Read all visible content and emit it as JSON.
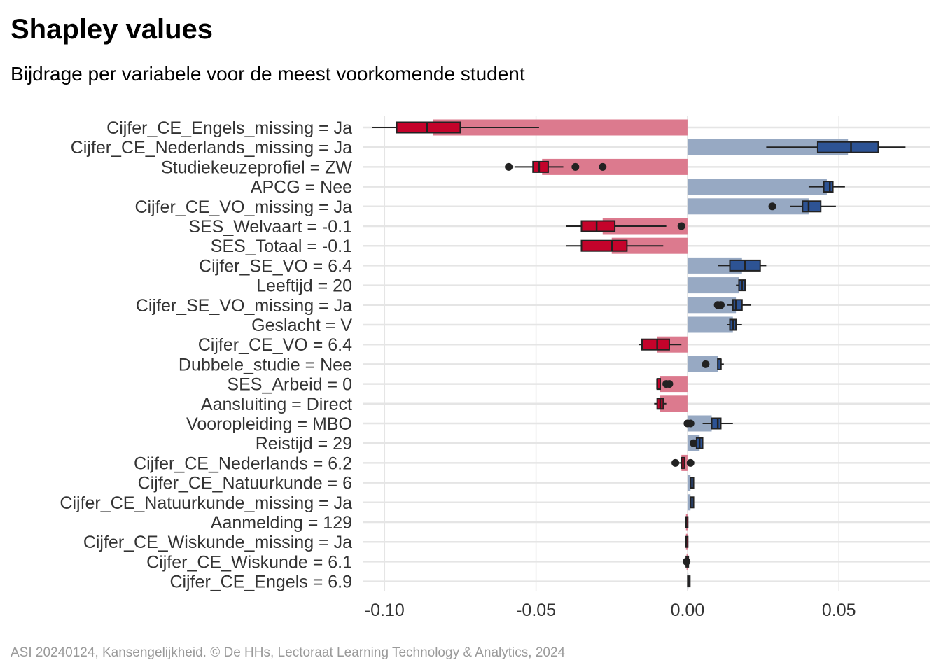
{
  "title": "Shapley values",
  "subtitle": "Bijdrage per variabele voor de meest voorkomende student",
  "caption": "ASI 20240124, Kansengelijkheid. © De HHs, Lectoraat Learning Technology & Analytics, 2024",
  "colors": {
    "negative_bar": "#dc7a8e",
    "negative_box": "#c4032b",
    "positive_bar": "#97a9c3",
    "positive_box": "#2d5394",
    "whisker": "#222222",
    "grid": "#e5e5e5"
  },
  "chart_data": {
    "type": "bar",
    "orientation": "horizontal",
    "title": "Shapley values",
    "subtitle": "Bijdrage per variabele voor de meest voorkomende student",
    "xlabel": "",
    "ylabel": "",
    "xlim": [
      -0.107,
      0.08
    ],
    "x_ticks": [
      -0.1,
      -0.05,
      0.0,
      0.05
    ],
    "x_tick_labels": [
      "-0.10",
      "-0.05",
      "0.00",
      "0.05"
    ],
    "grid": true,
    "categories": [
      "Cijfer_CE_Engels_missing = Ja",
      "Cijfer_CE_Nederlands_missing = Ja",
      "Studiekeuzeprofiel = ZW",
      "APCG = Nee",
      "Cijfer_CE_VO_missing = Ja",
      "SES_Welvaart = -0.1",
      "SES_Totaal = -0.1",
      "Cijfer_SE_VO = 6.4",
      "Leeftijd = 20",
      "Cijfer_SE_VO_missing = Ja",
      "Geslacht = V",
      "Cijfer_CE_VO = 6.4",
      "Dubbele_studie = Nee",
      "SES_Arbeid = 0",
      "Aansluiting = Direct",
      "Vooropleiding = MBO",
      "Reistijd = 29",
      "Cijfer_CE_Nederlands = 6.2",
      "Cijfer_CE_Natuurkunde = 6",
      "Cijfer_CE_Natuurkunde_missing = Ja",
      "Aanmelding = 129",
      "Cijfer_CE_Wiskunde_missing = Ja",
      "Cijfer_CE_Wiskunde = 6.1",
      "Cijfer_CE_Engels = 6.9"
    ],
    "values": [
      -0.084,
      0.053,
      -0.048,
      0.046,
      0.04,
      -0.028,
      -0.025,
      0.018,
      0.017,
      0.016,
      0.015,
      -0.01,
      0.01,
      -0.009,
      -0.009,
      0.008,
      0.004,
      -0.002,
      0.001,
      0.001,
      -0.0005,
      -0.0005,
      -0.0003,
      0.0003
    ],
    "boxplots": [
      {
        "min": -0.104,
        "q1": -0.096,
        "median": -0.086,
        "q3": -0.075,
        "max": -0.049,
        "outliers": []
      },
      {
        "min": 0.026,
        "q1": 0.043,
        "median": 0.054,
        "q3": 0.063,
        "max": 0.072,
        "outliers": []
      },
      {
        "min": -0.057,
        "q1": -0.051,
        "median": -0.049,
        "q3": -0.046,
        "max": -0.041,
        "outliers": [
          -0.059,
          -0.037,
          -0.028
        ]
      },
      {
        "min": 0.04,
        "q1": 0.045,
        "median": 0.047,
        "q3": 0.048,
        "max": 0.052,
        "outliers": []
      },
      {
        "min": 0.034,
        "q1": 0.038,
        "median": 0.04,
        "q3": 0.044,
        "max": 0.049,
        "outliers": [
          0.028
        ]
      },
      {
        "min": -0.04,
        "q1": -0.035,
        "median": -0.03,
        "q3": -0.024,
        "max": -0.007,
        "outliers": [
          -0.002
        ]
      },
      {
        "min": -0.04,
        "q1": -0.035,
        "median": -0.025,
        "q3": -0.02,
        "max": -0.008,
        "outliers": []
      },
      {
        "min": 0.01,
        "q1": 0.014,
        "median": 0.019,
        "q3": 0.024,
        "max": 0.026,
        "outliers": []
      },
      {
        "min": 0.016,
        "q1": 0.017,
        "median": 0.018,
        "q3": 0.019,
        "max": 0.019,
        "outliers": []
      },
      {
        "min": 0.013,
        "q1": 0.015,
        "median": 0.016,
        "q3": 0.018,
        "max": 0.021,
        "outliers": [
          0.01,
          0.011
        ]
      },
      {
        "min": 0.013,
        "q1": 0.014,
        "median": 0.015,
        "q3": 0.016,
        "max": 0.018,
        "outliers": []
      },
      {
        "min": -0.016,
        "q1": -0.015,
        "median": -0.01,
        "q3": -0.006,
        "max": -0.002,
        "outliers": []
      },
      {
        "min": 0.01,
        "q1": 0.01,
        "median": 0.011,
        "q3": 0.011,
        "max": 0.012,
        "outliers": [
          0.006
        ]
      },
      {
        "min": -0.01,
        "q1": -0.01,
        "median": -0.01,
        "q3": -0.009,
        "max": -0.009,
        "outliers": [
          -0.007,
          -0.006
        ]
      },
      {
        "min": -0.011,
        "q1": -0.01,
        "median": -0.009,
        "q3": -0.008,
        "max": -0.007,
        "outliers": []
      },
      {
        "min": 0.005,
        "q1": 0.008,
        "median": 0.01,
        "q3": 0.011,
        "max": 0.015,
        "outliers": [
          0.0,
          0.001
        ]
      },
      {
        "min": 0.003,
        "q1": 0.003,
        "median": 0.004,
        "q3": 0.005,
        "max": 0.005,
        "outliers": [
          0.002
        ]
      },
      {
        "min": -0.003,
        "q1": -0.002,
        "median": -0.002,
        "q3": -0.001,
        "max": -0.001,
        "outliers": [
          -0.004,
          0.001
        ]
      },
      {
        "min": 0.001,
        "q1": 0.001,
        "median": 0.001,
        "q3": 0.002,
        "max": 0.002,
        "outliers": []
      },
      {
        "min": 0.001,
        "q1": 0.001,
        "median": 0.001,
        "q3": 0.002,
        "max": 0.002,
        "outliers": []
      },
      {
        "min": -0.0008,
        "q1": -0.0006,
        "median": -0.0005,
        "q3": -0.0004,
        "max": -0.0003,
        "outliers": []
      },
      {
        "min": -0.0008,
        "q1": -0.0006,
        "median": -0.0005,
        "q3": -0.0004,
        "max": -0.0003,
        "outliers": []
      },
      {
        "min": -0.0006,
        "q1": -0.0004,
        "median": -0.0003,
        "q3": -0.0001,
        "max": 0.0,
        "outliers": [
          -0.0003
        ]
      },
      {
        "min": 0.0,
        "q1": 0.0001,
        "median": 0.0003,
        "q3": 0.0004,
        "max": 0.0005,
        "outliers": []
      }
    ]
  }
}
